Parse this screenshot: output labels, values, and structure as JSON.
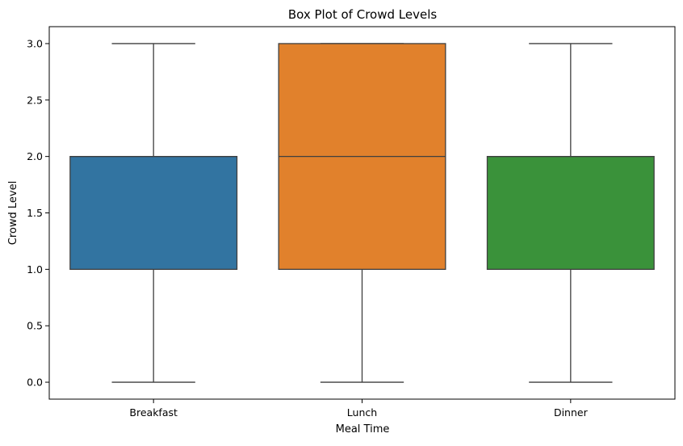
{
  "chart_data": {
    "type": "box",
    "title": "Box Plot of Crowd Levels",
    "xlabel": "Meal Time",
    "ylabel": "Crowd Level",
    "ylim": [
      -0.15,
      3.15
    ],
    "yticks": [
      "0.0",
      "0.5",
      "1.0",
      "1.5",
      "2.0",
      "2.5",
      "3.0"
    ],
    "categories": [
      "Breakfast",
      "Lunch",
      "Dinner"
    ],
    "boxes": [
      {
        "category": "Breakfast",
        "min": 0,
        "q1": 1,
        "median": 2,
        "q3": 2,
        "max": 3,
        "color": "#3274a1"
      },
      {
        "category": "Lunch",
        "min": 0,
        "q1": 1,
        "median": 2,
        "q3": 3,
        "max": 3,
        "color": "#e1812c"
      },
      {
        "category": "Dinner",
        "min": 0,
        "q1": 1,
        "median": 2,
        "q3": 2,
        "max": 3,
        "color": "#3a923a"
      }
    ],
    "grid": false,
    "legend": "none"
  }
}
